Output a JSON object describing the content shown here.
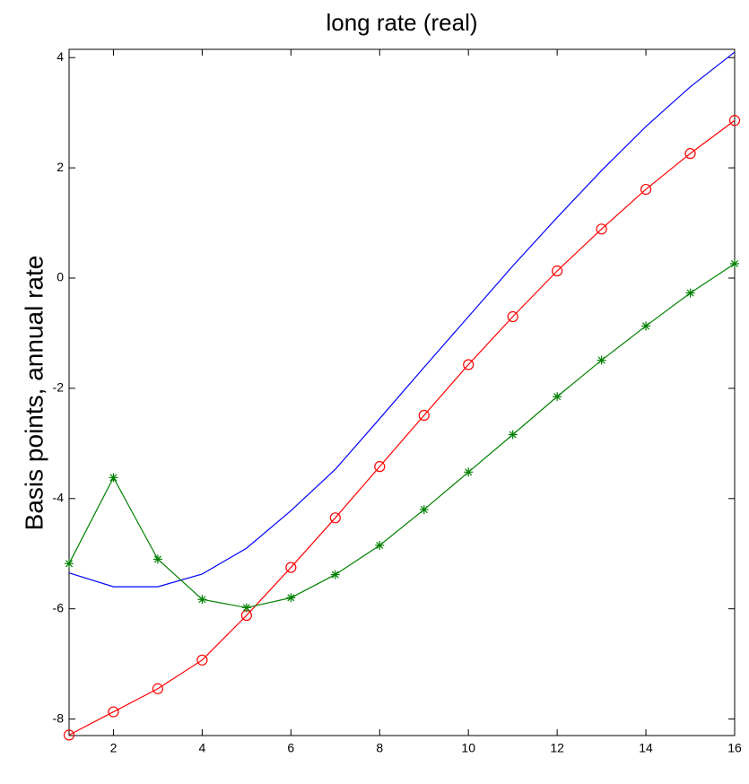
{
  "chart_data": {
    "type": "line",
    "title": "long rate (real)",
    "y_label": "Basis points, annual rate",
    "x": [
      1,
      2,
      3,
      4,
      5,
      6,
      7,
      8,
      9,
      10,
      11,
      12,
      13,
      14,
      15,
      16
    ],
    "series": [
      {
        "color": "#0000ff",
        "marker": "none",
        "values": [
          -5.35,
          -5.6,
          -5.6,
          -5.37,
          -4.9,
          -4.22,
          -3.47,
          -2.55,
          -1.62,
          -0.7,
          0.22,
          1.1,
          1.95,
          2.75,
          3.47,
          4.1
        ]
      },
      {
        "color": "#ff0000",
        "marker": "circle",
        "values": [
          -8.29,
          -7.87,
          -7.45,
          -6.93,
          -6.12,
          -5.25,
          -4.35,
          -3.42,
          -2.49,
          -1.57,
          -0.7,
          0.13,
          0.89,
          1.61,
          2.26,
          2.86
        ]
      },
      {
        "color": "#008000",
        "marker": "star",
        "values": [
          -5.18,
          -3.62,
          -5.1,
          -5.83,
          -5.98,
          -5.8,
          -5.38,
          -4.85,
          -4.2,
          -3.52,
          -2.84,
          -2.15,
          -1.49,
          -0.87,
          -0.27,
          0.26
        ]
      }
    ],
    "xlim": [
      1,
      16
    ],
    "xticks": [
      2,
      4,
      6,
      8,
      10,
      12,
      14,
      16
    ],
    "ylim": [
      -8.3,
      4.15
    ],
    "yticks": [
      -8,
      -6,
      -4,
      -2,
      0,
      2,
      4
    ],
    "grid": false
  }
}
